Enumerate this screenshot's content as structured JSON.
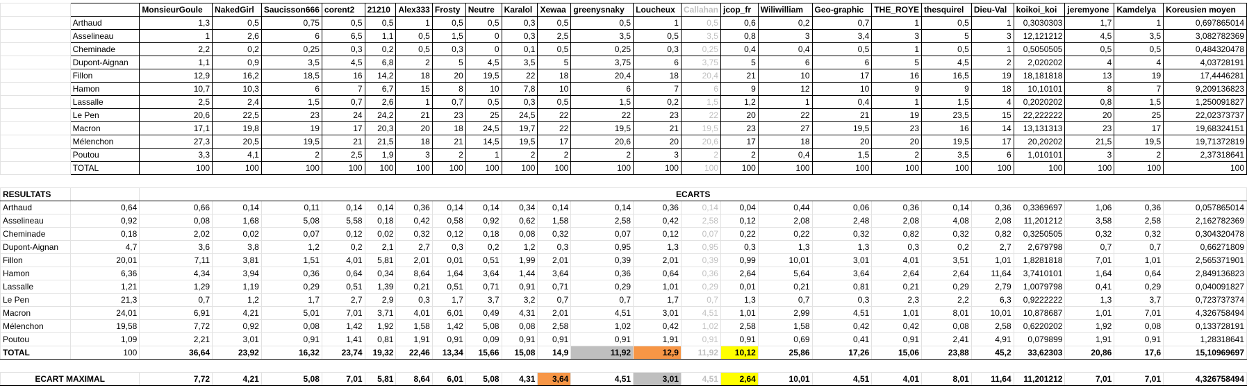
{
  "columns": [
    "MonsieurGoule",
    "NakedGirl",
    "Saucisson666",
    "corent2",
    "21210",
    "Alex333",
    "Frosty",
    "Neutre",
    "Karalol",
    "Xewaa",
    "greenysnaky",
    "Loucheux",
    "Callahan",
    "jcop_fr",
    "Wiliwilliam",
    "Geo-graphic",
    "THE_ROYE",
    "thesquirel",
    "Dieu-Val",
    "koikoi_koi",
    "jeremyone",
    "Kamdelya",
    "Koreusien moyen"
  ],
  "votes": {
    "rows": [
      {
        "label": "Arthaud",
        "values": [
          "1,3",
          "0,5",
          "0,75",
          "0,5",
          "0,5",
          "1",
          "0,5",
          "0,5",
          "0,3",
          "0,5",
          "0,5",
          "1",
          "0,5",
          "0,6",
          "0,2",
          "0,7",
          "1",
          "0,5",
          "1",
          "0,3030303",
          "1,7",
          "1",
          "0,697865014"
        ]
      },
      {
        "label": "Asselineau",
        "values": [
          "1",
          "2,6",
          "6",
          "6,5",
          "1,1",
          "0,5",
          "1,5",
          "0",
          "0,3",
          "2,5",
          "3,5",
          "0,5",
          "3,5",
          "0,8",
          "3",
          "3,4",
          "3",
          "5",
          "3",
          "12,121212",
          "4,5",
          "3,5",
          "3,082782369"
        ]
      },
      {
        "label": "Cheminade",
        "values": [
          "2,2",
          "0,2",
          "0,25",
          "0,3",
          "0,2",
          "0,5",
          "0,3",
          "0",
          "0,1",
          "0,5",
          "0,25",
          "0,3",
          "0,25",
          "0,4",
          "0,4",
          "0,5",
          "1",
          "0,5",
          "1",
          "0,5050505",
          "0,5",
          "0,5",
          "0,484320478"
        ]
      },
      {
        "label": "Dupont-Aignan",
        "values": [
          "1,1",
          "0,9",
          "3,5",
          "4,5",
          "6,8",
          "2",
          "5",
          "4,5",
          "3,5",
          "5",
          "3,75",
          "6",
          "3,75",
          "5",
          "6",
          "6",
          "5",
          "4,5",
          "2",
          "2,020202",
          "4",
          "4",
          "4,03728191"
        ]
      },
      {
        "label": "Fillon",
        "values": [
          "12,9",
          "16,2",
          "18,5",
          "16",
          "14,2",
          "18",
          "20",
          "19,5",
          "22",
          "18",
          "20,4",
          "18",
          "20,4",
          "21",
          "10",
          "17",
          "16",
          "16,5",
          "19",
          "18,181818",
          "13",
          "19",
          "17,4446281"
        ]
      },
      {
        "label": "Hamon",
        "values": [
          "10,7",
          "10,3",
          "6",
          "7",
          "6,7",
          "15",
          "8",
          "10",
          "7,8",
          "10",
          "6",
          "7",
          "6",
          "9",
          "12",
          "10",
          "9",
          "9",
          "18",
          "10,10101",
          "8",
          "7",
          "9,209136823"
        ]
      },
      {
        "label": "Lassalle",
        "values": [
          "2,5",
          "2,4",
          "1,5",
          "0,7",
          "2,6",
          "1",
          "0,7",
          "0,5",
          "0,3",
          "0,5",
          "1,5",
          "0,2",
          "1,5",
          "1,2",
          "1",
          "0,4",
          "1",
          "1,5",
          "4",
          "0,2020202",
          "0,8",
          "1,5",
          "1,250091827"
        ]
      },
      {
        "label": "Le Pen",
        "values": [
          "20,6",
          "22,5",
          "23",
          "24",
          "24,2",
          "21",
          "23",
          "25",
          "24,5",
          "22",
          "22",
          "23",
          "22",
          "20",
          "22",
          "21",
          "19",
          "23,5",
          "15",
          "22,222222",
          "20",
          "25",
          "22,02373737"
        ]
      },
      {
        "label": "Macron",
        "values": [
          "17,1",
          "19,8",
          "19",
          "17",
          "20,3",
          "20",
          "18",
          "24,5",
          "19,7",
          "22",
          "19,5",
          "21",
          "19,5",
          "23",
          "27",
          "19,5",
          "23",
          "16",
          "14",
          "13,131313",
          "23",
          "17",
          "19,68324151"
        ]
      },
      {
        "label": "Mélenchon",
        "values": [
          "27,3",
          "20,5",
          "19,5",
          "21",
          "21,5",
          "18",
          "21",
          "14,5",
          "19,5",
          "17",
          "20,6",
          "20",
          "20,6",
          "17",
          "18",
          "20",
          "20",
          "19,5",
          "17",
          "20,20202",
          "21,5",
          "19,5",
          "19,71372819"
        ]
      },
      {
        "label": "Poutou",
        "values": [
          "3,3",
          "4,1",
          "2",
          "2,5",
          "1,9",
          "3",
          "2",
          "1",
          "2",
          "2",
          "2",
          "3",
          "2",
          "2",
          "0,4",
          "1,5",
          "2",
          "3,5",
          "6",
          "1,010101",
          "3",
          "2",
          "2,37318641"
        ]
      }
    ],
    "total": {
      "label": "TOTAL",
      "values": [
        "100",
        "100",
        "100",
        "100",
        "100",
        "100",
        "100",
        "100",
        "100",
        "100",
        "100",
        "100",
        "100",
        "100",
        "100",
        "100",
        "100",
        "100",
        "100",
        "100",
        "100",
        "100",
        "100"
      ]
    }
  },
  "results": {
    "header": "RESULTATS",
    "ecarts_header": "ECARTS",
    "rows": [
      {
        "label": "Arthaud",
        "result": "0,64",
        "values": [
          "0,66",
          "0,14",
          "0,11",
          "0,14",
          "0,14",
          "0,36",
          "0,14",
          "0,14",
          "0,34",
          "0,14",
          "0,14",
          "0,36",
          "0,14",
          "0,04",
          "0,44",
          "0,06",
          "0,36",
          "0,14",
          "0,36",
          "0,3369697",
          "1,06",
          "0,36",
          "0,057865014"
        ]
      },
      {
        "label": "Asselineau",
        "result": "0,92",
        "values": [
          "0,08",
          "1,68",
          "5,08",
          "5,58",
          "0,18",
          "0,42",
          "0,58",
          "0,92",
          "0,62",
          "1,58",
          "2,58",
          "0,42",
          "2,58",
          "0,12",
          "2,08",
          "2,48",
          "2,08",
          "4,08",
          "2,08",
          "11,201212",
          "3,58",
          "2,58",
          "2,162782369"
        ]
      },
      {
        "label": "Cheminade",
        "result": "0,18",
        "values": [
          "2,02",
          "0,02",
          "0,07",
          "0,12",
          "0,02",
          "0,32",
          "0,12",
          "0,18",
          "0,08",
          "0,32",
          "0,07",
          "0,12",
          "0,07",
          "0,22",
          "0,22",
          "0,32",
          "0,82",
          "0,32",
          "0,82",
          "0,3250505",
          "0,32",
          "0,32",
          "0,304320478"
        ]
      },
      {
        "label": "Dupont-Aignan",
        "result": "4,7",
        "values": [
          "3,6",
          "3,8",
          "1,2",
          "0,2",
          "2,1",
          "2,7",
          "0,3",
          "0,2",
          "1,2",
          "0,3",
          "0,95",
          "1,3",
          "0,95",
          "0,3",
          "1,3",
          "1,3",
          "0,3",
          "0,2",
          "2,7",
          "2,679798",
          "0,7",
          "0,7",
          "0,66271809"
        ]
      },
      {
        "label": "Fillon",
        "result": "20,01",
        "values": [
          "7,11",
          "3,81",
          "1,51",
          "4,01",
          "5,81",
          "2,01",
          "0,01",
          "0,51",
          "1,99",
          "2,01",
          "0,39",
          "2,01",
          "0,39",
          "0,99",
          "10,01",
          "3,01",
          "4,01",
          "3,51",
          "1,01",
          "1,8281818",
          "7,01",
          "1,01",
          "2,565371901"
        ]
      },
      {
        "label": "Hamon",
        "result": "6,36",
        "values": [
          "4,34",
          "3,94",
          "0,36",
          "0,64",
          "0,34",
          "8,64",
          "1,64",
          "3,64",
          "1,44",
          "3,64",
          "0,36",
          "0,64",
          "0,36",
          "2,64",
          "5,64",
          "3,64",
          "2,64",
          "2,64",
          "11,64",
          "3,7410101",
          "1,64",
          "0,64",
          "2,849136823"
        ]
      },
      {
        "label": "Lassalle",
        "result": "1,21",
        "values": [
          "1,29",
          "1,19",
          "0,29",
          "0,51",
          "1,39",
          "0,21",
          "0,51",
          "0,71",
          "0,91",
          "0,71",
          "0,29",
          "1,01",
          "0,29",
          "0,01",
          "0,21",
          "0,81",
          "0,21",
          "0,29",
          "2,79",
          "1,0079798",
          "0,41",
          "0,29",
          "0,040091827"
        ]
      },
      {
        "label": "Le Pen",
        "result": "21,3",
        "values": [
          "0,7",
          "1,2",
          "1,7",
          "2,7",
          "2,9",
          "0,3",
          "1,7",
          "3,7",
          "3,2",
          "0,7",
          "0,7",
          "1,7",
          "0,7",
          "1,3",
          "0,7",
          "0,3",
          "2,3",
          "2,2",
          "6,3",
          "0,9222222",
          "1,3",
          "3,7",
          "0,723737374"
        ]
      },
      {
        "label": "Macron",
        "result": "24,01",
        "values": [
          "6,91",
          "4,21",
          "5,01",
          "7,01",
          "3,71",
          "4,01",
          "6,01",
          "0,49",
          "4,31",
          "2,01",
          "4,51",
          "3,01",
          "4,51",
          "1,01",
          "2,99",
          "4,51",
          "1,01",
          "8,01",
          "10,01",
          "10,878687",
          "1,01",
          "7,01",
          "4,326758494"
        ]
      },
      {
        "label": "Mélenchon",
        "result": "19,58",
        "values": [
          "7,72",
          "0,92",
          "0,08",
          "1,42",
          "1,92",
          "1,58",
          "1,42",
          "5,08",
          "0,08",
          "2,58",
          "1,02",
          "0,42",
          "1,02",
          "2,58",
          "1,58",
          "0,42",
          "0,42",
          "0,08",
          "2,58",
          "0,6220202",
          "1,92",
          "0,08",
          "0,133728191"
        ]
      },
      {
        "label": "Poutou",
        "result": "1,09",
        "values": [
          "2,21",
          "3,01",
          "0,91",
          "1,41",
          "0,81",
          "1,91",
          "0,91",
          "0,09",
          "0,91",
          "0,91",
          "0,91",
          "1,91",
          "0,91",
          "0,91",
          "0,69",
          "0,41",
          "0,91",
          "2,41",
          "4,91",
          "0,079899",
          "1,91",
          "0,91",
          "1,28318641"
        ]
      }
    ],
    "total": {
      "label": "TOTAL",
      "result": "100",
      "values": [
        "36,64",
        "23,92",
        "16,32",
        "23,74",
        "19,32",
        "22,46",
        "13,34",
        "15,66",
        "15,08",
        "14,9",
        "11,92",
        "12,9",
        "11,92",
        "10,12",
        "25,86",
        "17,26",
        "15,06",
        "23,88",
        "45,2",
        "33,62303",
        "20,86",
        "17,6",
        "15,10969697"
      ]
    }
  },
  "max": {
    "label": "ECART MAXIMAL",
    "values": [
      "7,72",
      "4,21",
      "5,08",
      "7,01",
      "5,81",
      "8,64",
      "6,01",
      "5,08",
      "4,31",
      "3,64",
      "4,51",
      "3,01",
      "4,51",
      "2,64",
      "10,01",
      "4,51",
      "4,01",
      "8,01",
      "11,64",
      "11,201212",
      "7,01",
      "7,01",
      "4,326758494"
    ]
  }
}
